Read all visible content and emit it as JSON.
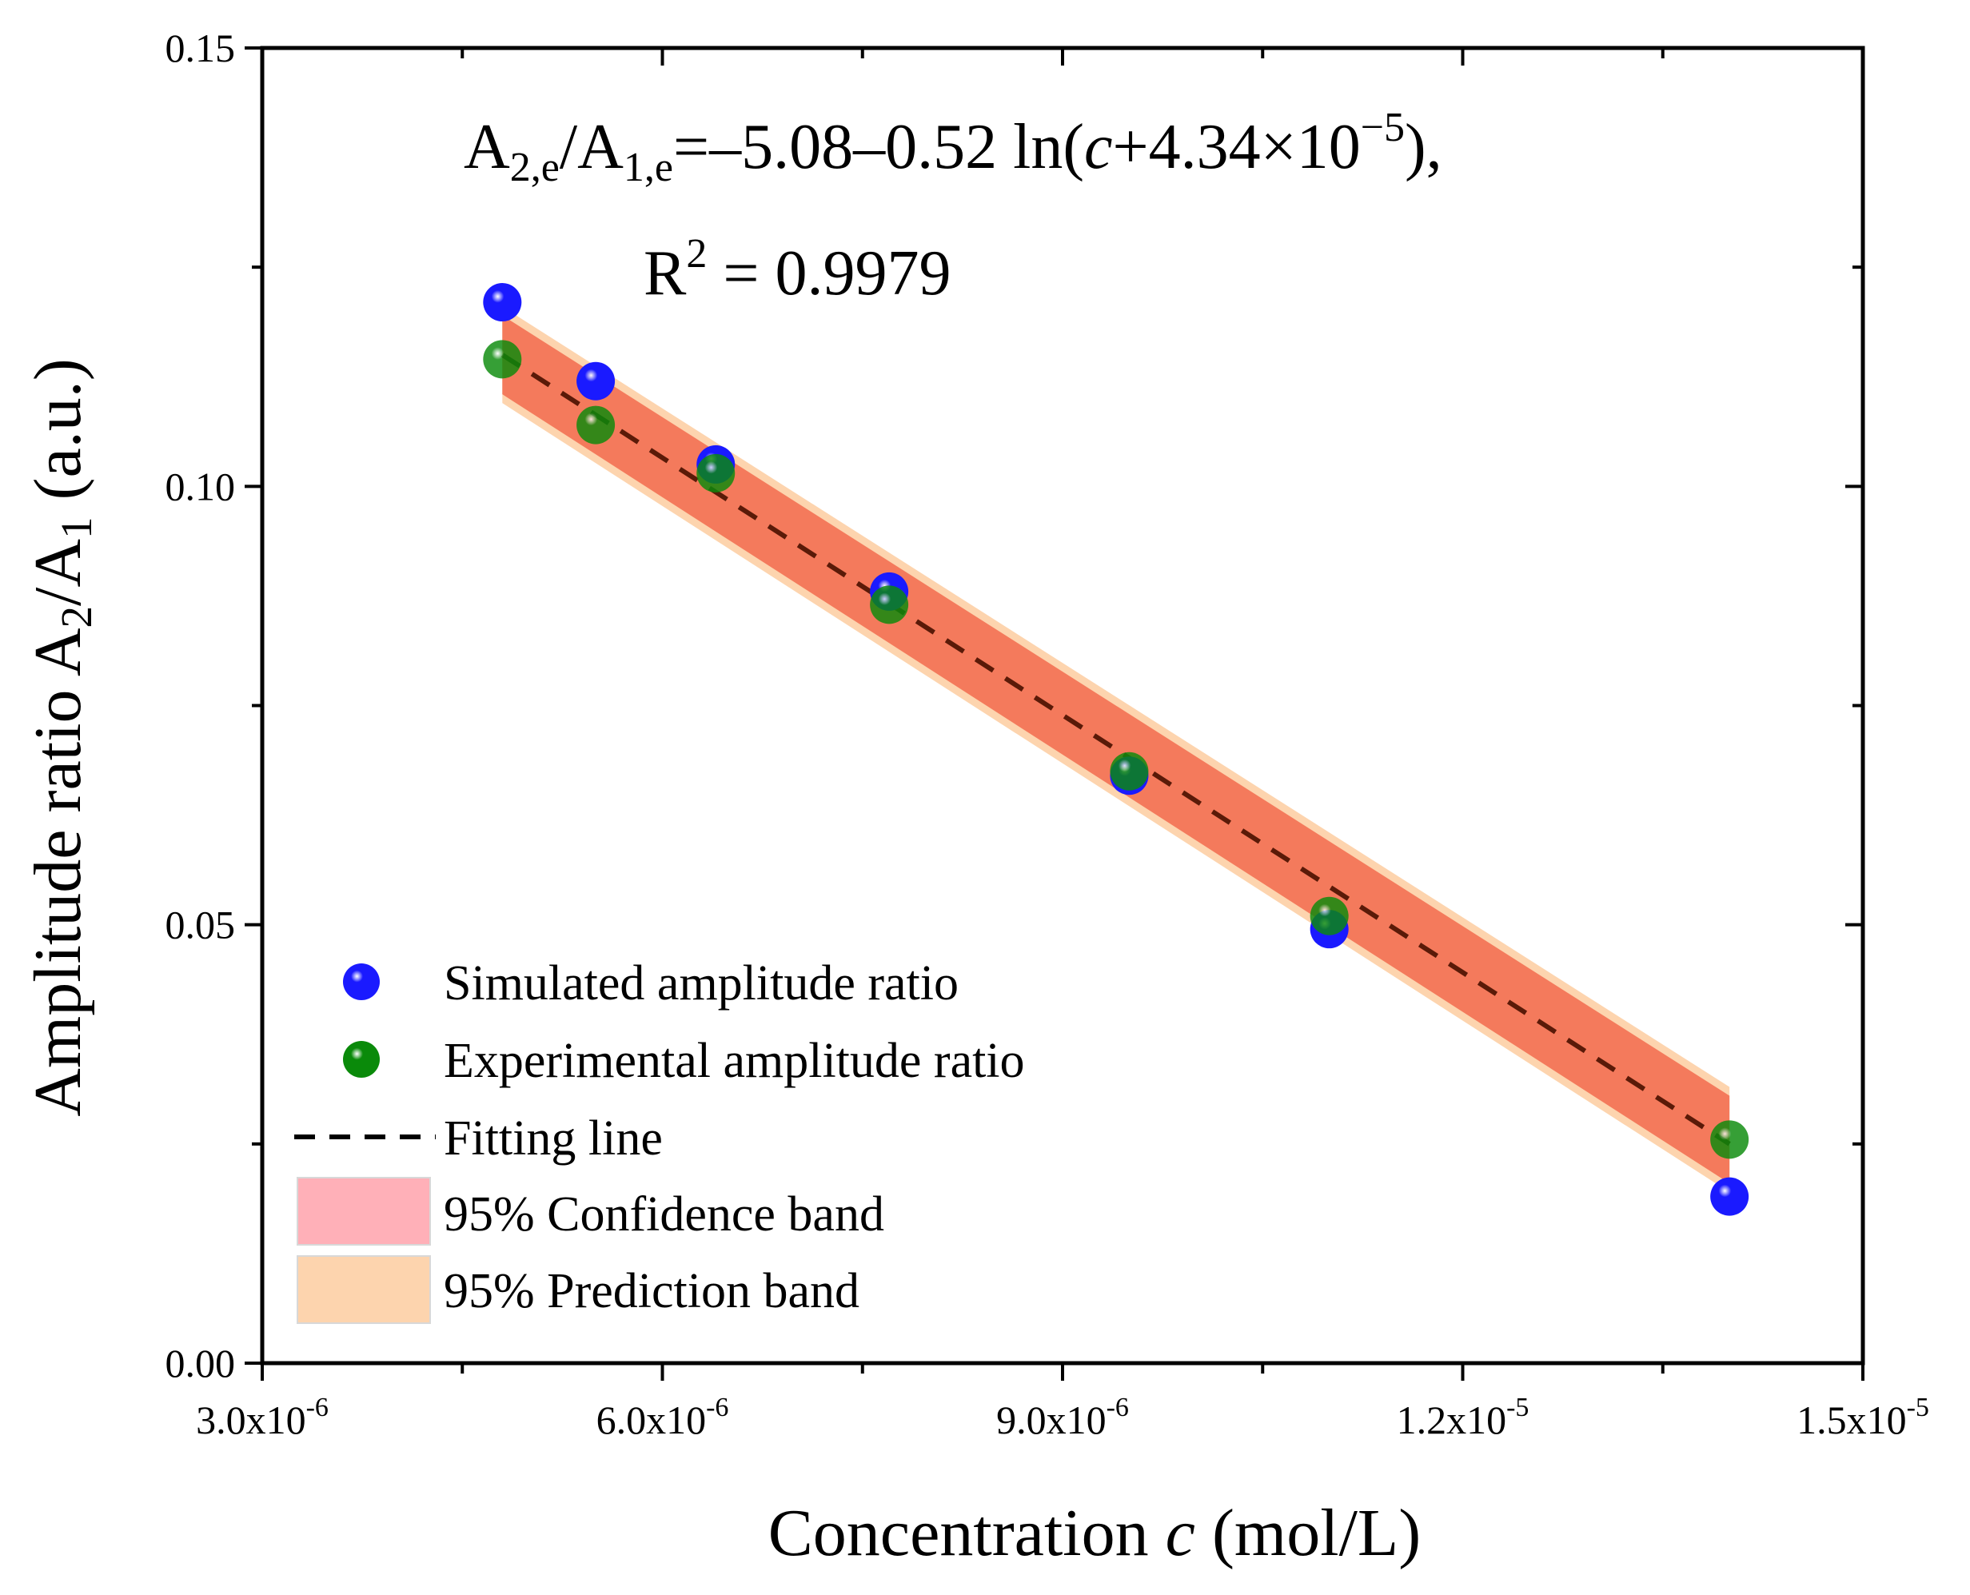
{
  "chart_data": {
    "type": "scatter",
    "title": "",
    "xlabel": {
      "prefix": "Concentration ",
      "italic": "c",
      "suffix": " (mol/L)"
    },
    "ylabel": {
      "main": "Amplitude ratio A",
      "sub1": "2",
      "slash": "/A",
      "sub2": "1",
      "suffix": " (a.u.)"
    },
    "xlim": [
      3e-06,
      1.5e-05
    ],
    "ylim": [
      0.0,
      0.15
    ],
    "xticks": [
      {
        "value": 3e-06,
        "mantissa": "3.0x10",
        "exp": "-6"
      },
      {
        "value": 6e-06,
        "mantissa": "6.0x10",
        "exp": "-6"
      },
      {
        "value": 9e-06,
        "mantissa": "9.0x10",
        "exp": "-6"
      },
      {
        "value": 1.2e-05,
        "mantissa": "1.2x10",
        "exp": "-5"
      },
      {
        "value": 1.5e-05,
        "mantissa": "1.5x10",
        "exp": "-5"
      }
    ],
    "xminor": [
      4.5e-06,
      7.5e-06,
      1.05e-05,
      1.35e-05
    ],
    "yticks": [
      {
        "value": 0.0,
        "label": "0.00"
      },
      {
        "value": 0.05,
        "label": "0.05"
      },
      {
        "value": 0.1,
        "label": "0.10"
      },
      {
        "value": 0.15,
        "label": "0.15"
      }
    ],
    "yminor": [
      0.025,
      0.075,
      0.125
    ],
    "series": [
      {
        "name": "Simulated amplitude ratio",
        "color": "#1a1aff",
        "x": [
          4.8e-06,
          5.5e-06,
          6.4e-06,
          7.7e-06,
          9.5e-06,
          1.1e-05,
          1.4e-05
        ],
        "y": [
          0.121,
          0.112,
          0.1025,
          0.088,
          0.067,
          0.0495,
          0.019
        ]
      },
      {
        "name": "Experimental amplitude ratio",
        "color": "#0a8a0a",
        "x": [
          4.8e-06,
          5.5e-06,
          6.4e-06,
          7.7e-06,
          9.5e-06,
          1.1e-05,
          1.4e-05
        ],
        "y": [
          0.1145,
          0.107,
          0.1015,
          0.0865,
          0.0675,
          0.051,
          0.0255
        ]
      }
    ],
    "fit": {
      "name": "Fitting line",
      "color": "#5a1a08",
      "x": [
        4.8e-06,
        1.4e-05
      ],
      "y": [
        0.115,
        0.025
      ]
    },
    "confidence_band": {
      "name": "95% Confidence band",
      "color": "#f47a5c",
      "swatch_color": "#ffb0b8",
      "x": [
        4.8e-06,
        1.4e-05
      ],
      "upper": [
        0.1195,
        0.0305
      ],
      "lower": [
        0.1105,
        0.0205
      ]
    },
    "prediction_band": {
      "name": "95% Prediction band",
      "color": "#fdd4ae",
      "x": [
        4.8e-06,
        1.4e-05
      ],
      "upper": [
        0.1205,
        0.0315
      ],
      "lower": [
        0.1095,
        0.0195
      ]
    },
    "legend_position": "bottom-left",
    "equation": {
      "a": "A",
      "a_sub": "2,e",
      "slash": "/A",
      "b_sub": "1,e",
      "rhs": "=–5.08–0.52 ln(",
      "c": "c",
      "plus": "+4.34×10",
      "exp": "−5",
      "tail": "),",
      "r2_prefix": "R",
      "r2_exp": "2",
      "r2_value": " = 0.9979"
    }
  }
}
